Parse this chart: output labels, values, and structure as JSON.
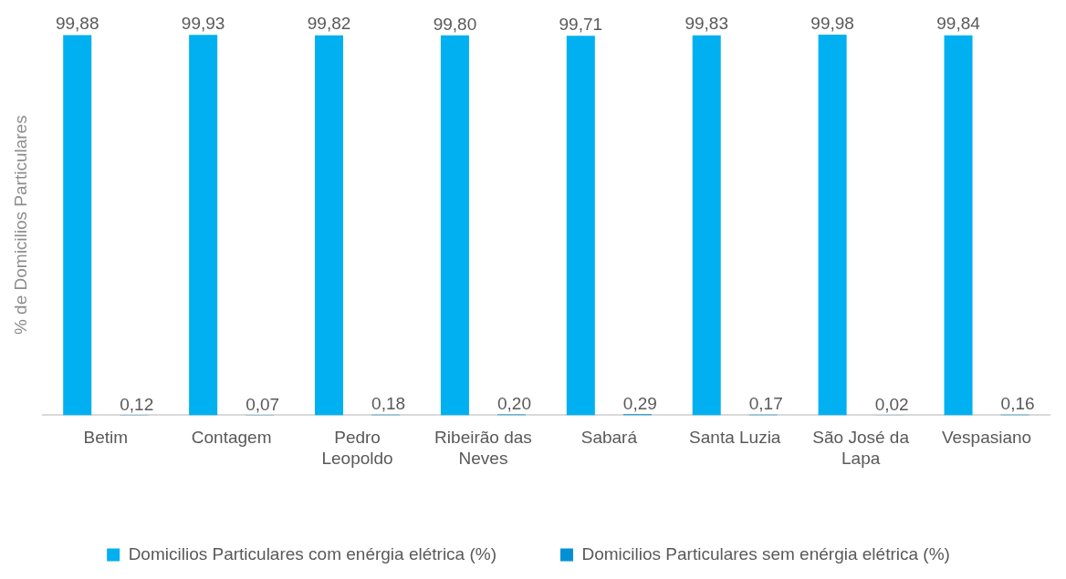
{
  "chart_data": {
    "type": "bar",
    "ylabel": "% de Domicilios Particulares",
    "categories": [
      "Betim",
      "Contagem",
      "Pedro Leopoldo",
      "Ribeirão das Neves",
      "Sabará",
      "Santa Luzia",
      "São José da Lapa",
      "Vespasiano"
    ],
    "series": [
      {
        "name": "Domicilios Particulares com enérgia elétrica (%)",
        "color": "#00b0f0",
        "values": [
          99.88,
          99.93,
          99.82,
          99.8,
          99.71,
          99.83,
          99.98,
          99.84
        ],
        "value_labels": [
          "99,88",
          "99,93",
          "99,82",
          "99,80",
          "99,71",
          "99,83",
          "99,98",
          "99,84"
        ]
      },
      {
        "name": "Domicilios Particulares sem enérgia elétrica (%)",
        "color": "#0091d5",
        "values": [
          0.12,
          0.07,
          0.18,
          0.2,
          0.29,
          0.17,
          0.02,
          0.16
        ],
        "value_labels": [
          "0,12",
          "0,07",
          "0,18",
          "0,20",
          "0,29",
          "0,17",
          "0,02",
          "0,16"
        ]
      }
    ],
    "grid": false,
    "legend": "bottom"
  }
}
